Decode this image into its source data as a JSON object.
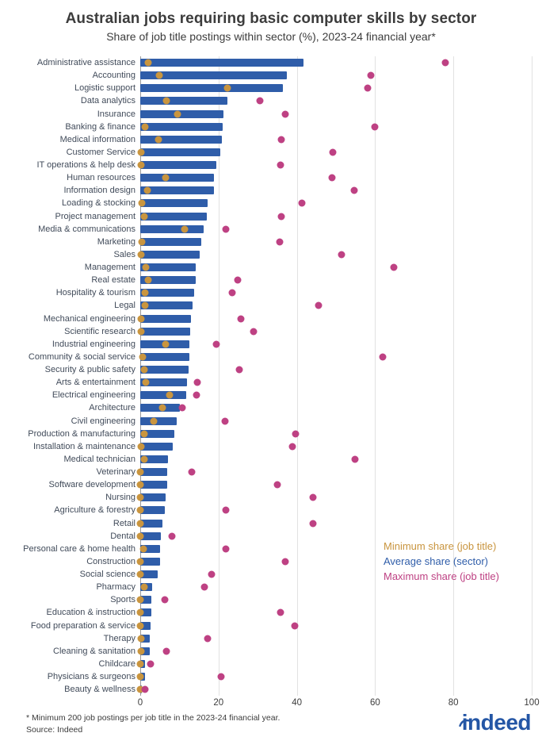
{
  "header": {
    "title": "Australian jobs requiring basic computer skills by sector",
    "subtitle": "Share of job title postings within sector (%), 2023-24 financial year*"
  },
  "legend": [
    {
      "label": "Minimum share (job title)",
      "color": "#C9953F"
    },
    {
      "label": "Average share (sector)",
      "color": "#2F5DA9"
    },
    {
      "label": "Maximum share (job title)",
      "color": "#BE4183"
    }
  ],
  "colors": {
    "bar_blue": "#2F5DA9",
    "min_gold": "#C9953F",
    "max_magenta": "#BE4183",
    "logo_blue": "#2456A5",
    "gridline": "#E2E2E2",
    "axis_line": "#9A9A9A",
    "text": "#3C3C3C",
    "category_label": "#414B5A"
  },
  "footer": {
    "footnote": "* Minimum 200 job postings per job title in the 2023-24 financial year.",
    "source": "Source: Indeed",
    "logo_text": "indeed"
  },
  "chart_data": {
    "type": "bar",
    "orientation": "horizontal",
    "title": "Australian jobs requiring basic computer skills by sector",
    "subtitle": "Share of job title postings within sector (%), 2023-24 financial year*",
    "xlabel": "Share of job title postings within sector (%)",
    "xlim": [
      0,
      100
    ],
    "x_ticks": [
      0,
      20,
      40,
      60,
      80,
      100
    ],
    "grid": "vertical",
    "legend_position": "inside-lower-right",
    "categories": [
      "Administrative assistance",
      "Accounting",
      "Logistic support",
      "Data analytics",
      "Insurance",
      "Banking & finance",
      "Medical information",
      "Customer Service",
      "IT operations & help desk",
      "Human resources",
      "Information design",
      "Loading & stocking",
      "Project management",
      "Media & communications",
      "Marketing",
      "Sales",
      "Management",
      "Real estate",
      "Hospitality & tourism",
      "Legal",
      "Mechanical engineering",
      "Scientific research",
      "Industrial engineering",
      "Community & social service",
      "Security & public safety",
      "Arts & entertainment",
      "Electrical engineering",
      "Architecture",
      "Civil engineering",
      "Production & manufacturing",
      "Installation & maintenance",
      "Medical technician",
      "Veterinary",
      "Software development",
      "Nursing",
      "Agriculture & forestry",
      "Retail",
      "Dental",
      "Personal care & home health",
      "Construction",
      "Social science",
      "Pharmacy",
      "Sports",
      "Education & instruction",
      "Food preparation & service",
      "Therapy",
      "Cleaning & sanitation",
      "Childcare",
      "Physicians & surgeons",
      "Beauty & wellness"
    ],
    "series": [
      {
        "name": "Minimum share (job title)",
        "mark": "dot",
        "color": "#C9953F",
        "values": [
          2.0,
          4.9,
          22.3,
          6.6,
          9.6,
          1.2,
          4.7,
          0.3,
          0.3,
          6.5,
          1.8,
          0.5,
          1.1,
          11.3,
          0.5,
          0.2,
          1.5,
          2.0,
          1.3,
          1.3,
          0.2,
          0.3,
          6.5,
          0.7,
          1.0,
          1.5,
          7.4,
          5.7,
          3.4,
          1.1,
          0.3,
          1.0,
          0.1,
          0.1,
          0.1,
          0.1,
          0.1,
          0.1,
          0.9,
          0.1,
          0.1,
          1.0,
          0.1,
          0.1,
          0.1,
          0.3,
          0.3,
          0.1,
          0.1,
          0.1
        ]
      },
      {
        "name": "Average share (sector)",
        "mark": "bar",
        "color": "#2F5DA9",
        "values": [
          41.6,
          37.5,
          36.5,
          22.3,
          21.2,
          21.1,
          20.8,
          20.4,
          19.5,
          18.9,
          18.8,
          17.3,
          17.1,
          16.2,
          15.5,
          15.2,
          14.2,
          14.2,
          13.8,
          13.4,
          13.0,
          12.7,
          12.6,
          12.5,
          12.4,
          11.9,
          11.7,
          10.2,
          9.4,
          8.8,
          8.2,
          7.1,
          6.9,
          6.9,
          6.5,
          6.2,
          5.7,
          5.3,
          5.1,
          5.0,
          4.5,
          3.0,
          2.9,
          2.9,
          2.6,
          2.5,
          2.4,
          1.2,
          1.2,
          0.5
        ]
      },
      {
        "name": "Maximum share (job title)",
        "mark": "dot",
        "color": "#BE4183",
        "values": [
          78.0,
          59.0,
          58.0,
          30.5,
          37.0,
          60.0,
          36.0,
          49.2,
          35.9,
          48.9,
          54.6,
          41.3,
          36.1,
          21.9,
          35.6,
          51.4,
          64.7,
          24.8,
          23.4,
          45.6,
          25.8,
          29.0,
          19.5,
          62.0,
          25.3,
          14.6,
          14.3,
          10.8,
          21.6,
          39.6,
          38.8,
          54.8,
          13.1,
          35.1,
          44.2,
          21.9,
          44.2,
          8.1,
          21.9,
          37.1,
          18.2,
          16.3,
          6.3,
          35.9,
          39.4,
          17.3,
          6.7,
          2.7,
          20.6,
          1.3
        ]
      }
    ]
  }
}
